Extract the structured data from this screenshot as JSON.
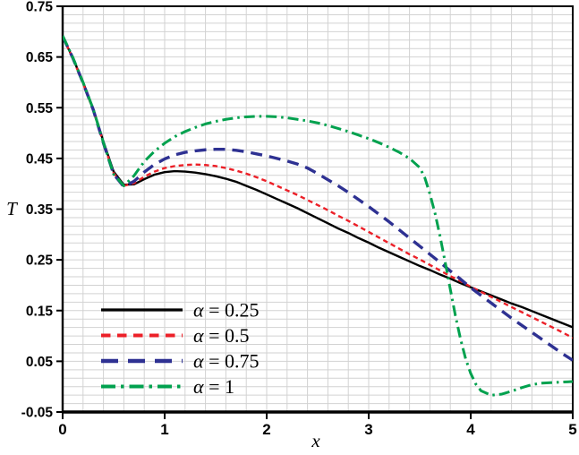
{
  "figure": {
    "background": "#ffffff"
  },
  "chart_data": {
    "type": "line",
    "title": "",
    "xlabel": "x",
    "ylabel": "T",
    "xlim": [
      0,
      5
    ],
    "ylim": [
      -0.05,
      0.75
    ],
    "grid": true,
    "grid_color": "#d2d2d2",
    "axis_color": "#000000",
    "x_minor_step": 0.2,
    "y_minor_divisions_per_major": 6,
    "x_major_values": [
      0,
      1,
      2,
      3,
      4,
      5
    ],
    "x_major_labels": [
      "0",
      "1",
      "2",
      "3",
      "4",
      "5"
    ],
    "y_major_values": [
      0.75,
      0.65,
      0.55,
      0.45,
      0.35,
      0.25,
      0.15,
      0.05,
      -0.05
    ],
    "y_major_labels": [
      "0.75",
      "0.65",
      "0.55",
      "0.45",
      "0.35",
      "0.25",
      "0.15",
      "0.05",
      "-0.05"
    ],
    "legend_position": "inside-lower-left",
    "x_common": [
      0,
      0.1,
      0.2,
      0.3,
      0.4,
      0.5,
      0.6,
      0.7,
      0.8,
      0.9,
      1,
      1.1,
      1.2,
      1.3,
      1.4,
      1.5,
      1.6,
      1.7,
      1.8,
      1.9,
      2,
      2.1,
      2.2,
      2.3,
      2.4,
      2.5,
      2.6,
      2.7,
      2.8,
      2.9,
      3,
      3.1,
      3.2,
      3.3,
      3.4,
      3.5,
      3.6,
      3.7,
      3.8,
      3.9,
      4,
      4.1,
      4.2,
      4.3,
      4.4,
      4.5,
      4.6,
      4.7,
      4.8,
      4.9,
      5
    ],
    "series": [
      {
        "name": "α = 0.25",
        "color": "#000000",
        "style": "solid",
        "y": [
          0.69,
          0.648,
          0.6,
          0.548,
          0.483,
          0.424,
          0.398,
          0.399,
          0.409,
          0.418,
          0.423,
          0.425,
          0.424,
          0.422,
          0.419,
          0.415,
          0.41,
          0.404,
          0.396,
          0.388,
          0.379,
          0.37,
          0.361,
          0.352,
          0.342,
          0.332,
          0.322,
          0.312,
          0.303,
          0.293,
          0.284,
          0.274,
          0.265,
          0.256,
          0.247,
          0.238,
          0.23,
          0.221,
          0.213,
          0.204,
          0.196,
          0.188,
          0.18,
          0.172,
          0.164,
          0.157,
          0.149,
          0.141,
          0.133,
          0.125,
          0.117
        ]
      },
      {
        "name": "α = 0.5",
        "color": "#ec2028",
        "style": "dot",
        "y": [
          0.69,
          0.647,
          0.598,
          0.545,
          0.48,
          0.421,
          0.396,
          0.401,
          0.414,
          0.424,
          0.431,
          0.435,
          0.437,
          0.438,
          0.437,
          0.435,
          0.431,
          0.426,
          0.42,
          0.413,
          0.405,
          0.396,
          0.387,
          0.378,
          0.368,
          0.358,
          0.348,
          0.337,
          0.327,
          0.316,
          0.305,
          0.294,
          0.283,
          0.272,
          0.261,
          0.251,
          0.24,
          0.229,
          0.218,
          0.208,
          0.197,
          0.187,
          0.177,
          0.167,
          0.157,
          0.147,
          0.137,
          0.127,
          0.117,
          0.107,
          0.096
        ]
      },
      {
        "name": "α = 0.75",
        "color": "#2e3192",
        "style": "dash",
        "y": [
          0.691,
          0.648,
          0.599,
          0.546,
          0.48,
          0.419,
          0.394,
          0.405,
          0.423,
          0.438,
          0.449,
          0.457,
          0.462,
          0.465,
          0.467,
          0.468,
          0.468,
          0.466,
          0.463,
          0.459,
          0.455,
          0.45,
          0.445,
          0.439,
          0.431,
          0.42,
          0.408,
          0.396,
          0.383,
          0.369,
          0.355,
          0.34,
          0.325,
          0.309,
          0.293,
          0.277,
          0.261,
          0.245,
          0.228,
          0.212,
          0.195,
          0.18,
          0.165,
          0.15,
          0.135,
          0.121,
          0.107,
          0.093,
          0.079,
          0.065,
          0.052
        ]
      },
      {
        "name": "α = 1",
        "color": "#00a14e",
        "style": "dash-dot",
        "x": [
          0,
          0.1,
          0.2,
          0.3,
          0.4,
          0.5,
          0.6,
          0.7,
          0.8,
          0.9,
          1,
          1.1,
          1.2,
          1.3,
          1.4,
          1.5,
          1.6,
          1.7,
          1.8,
          1.9,
          2,
          2.1,
          2.2,
          2.3,
          2.4,
          2.5,
          2.6,
          2.7,
          2.8,
          2.9,
          3,
          3.1,
          3.2,
          3.3,
          3.4,
          3.5,
          3.55,
          3.6,
          3.65,
          3.7,
          3.75,
          3.8,
          3.85,
          3.9,
          3.95,
          4,
          4.05,
          4.1,
          4.2,
          4.3,
          4.4,
          4.5,
          4.6,
          4.7,
          4.8,
          4.9,
          5
        ],
        "y": [
          0.692,
          0.649,
          0.6,
          0.547,
          0.481,
          0.419,
          0.396,
          0.416,
          0.444,
          0.464,
          0.48,
          0.493,
          0.503,
          0.511,
          0.518,
          0.523,
          0.527,
          0.53,
          0.532,
          0.533,
          0.533,
          0.532,
          0.53,
          0.527,
          0.524,
          0.52,
          0.515,
          0.509,
          0.503,
          0.496,
          0.489,
          0.481,
          0.472,
          0.462,
          0.45,
          0.432,
          0.412,
          0.38,
          0.342,
          0.296,
          0.245,
          0.192,
          0.14,
          0.094,
          0.055,
          0.026,
          0.005,
          -0.008,
          -0.017,
          -0.015,
          -0.009,
          -0.002,
          0.004,
          0.007,
          0.008,
          0.009,
          0.01
        ]
      }
    ]
  }
}
